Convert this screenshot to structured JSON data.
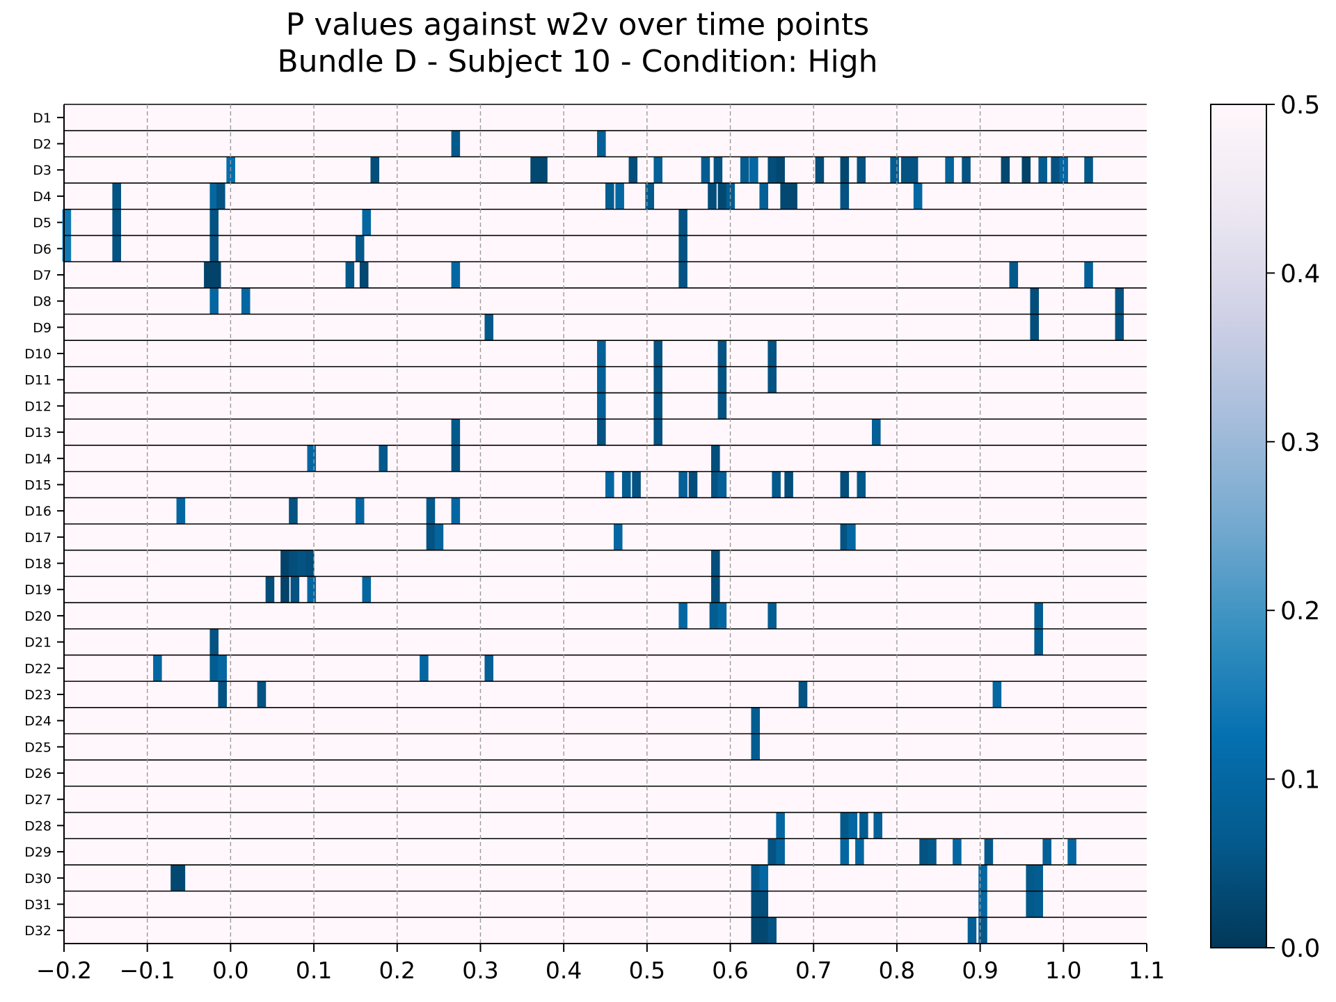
{
  "chart_data": {
    "type": "heatmap",
    "title": "P values against w2v over time points",
    "subtitle": "Bundle D - Subject 10 - Condition: High",
    "xlabel": "",
    "ylabel": "",
    "xlim": [
      -0.2,
      1.1
    ],
    "x_ticks": [
      "−0.2",
      "−0.1",
      "0.0",
      "0.1",
      "0.2",
      "0.3",
      "0.4",
      "0.5",
      "0.6",
      "0.7",
      "0.8",
      "0.9",
      "1.0",
      "1.1"
    ],
    "x_tick_values": [
      -0.2,
      -0.1,
      0.0,
      0.1,
      0.2,
      0.3,
      0.4,
      0.5,
      0.6,
      0.7,
      0.8,
      0.9,
      1.0,
      1.1
    ],
    "vertical_grid": "dashed at each x tick",
    "rows": [
      "D1",
      "D2",
      "D3",
      "D4",
      "D5",
      "D6",
      "D7",
      "D8",
      "D9",
      "D10",
      "D11",
      "D12",
      "D13",
      "D14",
      "D15",
      "D16",
      "D17",
      "D18",
      "D19",
      "D20",
      "D21",
      "D22",
      "D23",
      "D24",
      "D25",
      "D26",
      "D27",
      "D28",
      "D29",
      "D30",
      "D31",
      "D32"
    ],
    "default_p": 0.5,
    "colorbar": {
      "range": [
        0.0,
        0.5
      ],
      "ticks": [
        "0.0",
        "0.1",
        "0.2",
        "0.3",
        "0.4",
        "0.5"
      ],
      "tick_values": [
        0.0,
        0.1,
        0.2,
        0.3,
        0.4,
        0.5
      ],
      "colormap": "PuBu_r",
      "stops": [
        "#023858",
        "#045a8d",
        "#0570b0",
        "#3690c0",
        "#74a9cf",
        "#a6bddb",
        "#d0d1e6",
        "#ece7f2",
        "#fff7fb"
      ]
    },
    "significant_cells": [
      {
        "row": "D2",
        "cells": [
          [
            0.27,
            0.06
          ],
          [
            0.445,
            0.08
          ]
        ]
      },
      {
        "row": "D3",
        "cells": [
          [
            0.0,
            0.12
          ],
          [
            0.173,
            0.04
          ],
          [
            0.365,
            0.03
          ],
          [
            0.375,
            0.03
          ],
          [
            0.483,
            0.04
          ],
          [
            0.513,
            0.08
          ],
          [
            0.57,
            0.07
          ],
          [
            0.585,
            0.05
          ],
          [
            0.617,
            0.07
          ],
          [
            0.628,
            0.1
          ],
          [
            0.65,
            0.04
          ],
          [
            0.66,
            0.03
          ],
          [
            0.707,
            0.04
          ],
          [
            0.737,
            0.03
          ],
          [
            0.757,
            0.05
          ],
          [
            0.797,
            0.07
          ],
          [
            0.81,
            0.05
          ],
          [
            0.82,
            0.05
          ],
          [
            0.863,
            0.09
          ],
          [
            0.883,
            0.05
          ],
          [
            0.93,
            0.03
          ],
          [
            0.955,
            0.02
          ],
          [
            0.975,
            0.07
          ],
          [
            0.99,
            0.05
          ],
          [
            1.0,
            0.1
          ],
          [
            1.03,
            0.06
          ]
        ]
      },
      {
        "row": "D4",
        "cells": [
          [
            -0.137,
            0.05
          ],
          [
            -0.02,
            0.1
          ],
          [
            -0.012,
            0.05
          ],
          [
            0.455,
            0.07
          ],
          [
            0.467,
            0.1
          ],
          [
            0.503,
            0.06
          ],
          [
            0.578,
            0.04
          ],
          [
            0.59,
            0.03
          ],
          [
            0.6,
            0.07
          ],
          [
            0.64,
            0.08
          ],
          [
            0.665,
            0.03
          ],
          [
            0.675,
            0.03
          ],
          [
            0.737,
            0.05
          ],
          [
            0.825,
            0.1
          ]
        ]
      },
      {
        "row": "D5",
        "cells": [
          [
            -0.197,
            0.14
          ],
          [
            -0.137,
            0.05
          ],
          [
            -0.02,
            0.05
          ],
          [
            0.163,
            0.1
          ],
          [
            0.543,
            0.05
          ]
        ]
      },
      {
        "row": "D6",
        "cells": [
          [
            -0.197,
            0.14
          ],
          [
            -0.137,
            0.05
          ],
          [
            -0.02,
            0.05
          ],
          [
            0.155,
            0.06
          ],
          [
            0.543,
            0.05
          ]
        ]
      },
      {
        "row": "D7",
        "cells": [
          [
            -0.027,
            0.02
          ],
          [
            -0.017,
            0.02
          ],
          [
            0.143,
            0.06
          ],
          [
            0.16,
            0.03
          ],
          [
            0.27,
            0.1
          ],
          [
            0.543,
            0.05
          ],
          [
            0.94,
            0.06
          ],
          [
            1.03,
            0.08
          ]
        ]
      },
      {
        "row": "D8",
        "cells": [
          [
            -0.02,
            0.1
          ],
          [
            0.018,
            0.1
          ],
          [
            0.965,
            0.04
          ],
          [
            1.067,
            0.05
          ]
        ]
      },
      {
        "row": "D9",
        "cells": [
          [
            0.31,
            0.06
          ],
          [
            0.965,
            0.04
          ],
          [
            1.067,
            0.05
          ]
        ]
      },
      {
        "row": "D10",
        "cells": [
          [
            0.445,
            0.08
          ],
          [
            0.513,
            0.05
          ],
          [
            0.59,
            0.05
          ],
          [
            0.65,
            0.05
          ]
        ]
      },
      {
        "row": "D11",
        "cells": [
          [
            0.445,
            0.08
          ],
          [
            0.513,
            0.05
          ],
          [
            0.59,
            0.05
          ],
          [
            0.65,
            0.05
          ]
        ]
      },
      {
        "row": "D12",
        "cells": [
          [
            0.445,
            0.08
          ],
          [
            0.513,
            0.05
          ],
          [
            0.59,
            0.05
          ]
        ]
      },
      {
        "row": "D13",
        "cells": [
          [
            0.27,
            0.06
          ],
          [
            0.445,
            0.05
          ],
          [
            0.513,
            0.05
          ],
          [
            0.775,
            0.08
          ]
        ]
      },
      {
        "row": "D14",
        "cells": [
          [
            0.097,
            0.1
          ],
          [
            0.183,
            0.06
          ],
          [
            0.27,
            0.05
          ],
          [
            0.582,
            0.04
          ]
        ]
      },
      {
        "row": "D15",
        "cells": [
          [
            0.455,
            0.1
          ],
          [
            0.475,
            0.07
          ],
          [
            0.487,
            0.05
          ],
          [
            0.543,
            0.08
          ],
          [
            0.555,
            0.04
          ],
          [
            0.582,
            0.05
          ],
          [
            0.59,
            0.08
          ],
          [
            0.655,
            0.06
          ],
          [
            0.67,
            0.04
          ],
          [
            0.737,
            0.04
          ],
          [
            0.757,
            0.06
          ]
        ]
      },
      {
        "row": "D16",
        "cells": [
          [
            -0.06,
            0.1
          ],
          [
            0.075,
            0.05
          ],
          [
            0.155,
            0.1
          ],
          [
            0.24,
            0.06
          ],
          [
            0.27,
            0.1
          ]
        ]
      },
      {
        "row": "D17",
        "cells": [
          [
            0.24,
            0.05
          ],
          [
            0.25,
            0.09
          ],
          [
            0.465,
            0.1
          ],
          [
            0.737,
            0.05
          ],
          [
            0.745,
            0.1
          ]
        ]
      },
      {
        "row": "D18",
        "cells": [
          [
            0.065,
            0.02
          ],
          [
            0.075,
            0.04
          ],
          [
            0.085,
            0.05
          ],
          [
            0.095,
            0.04
          ],
          [
            0.582,
            0.04
          ]
        ]
      },
      {
        "row": "D19",
        "cells": [
          [
            0.047,
            0.04
          ],
          [
            0.065,
            0.02
          ],
          [
            0.077,
            0.05
          ],
          [
            0.097,
            0.1
          ],
          [
            0.163,
            0.1
          ],
          [
            0.582,
            0.04
          ]
        ]
      },
      {
        "row": "D20",
        "cells": [
          [
            0.543,
            0.1
          ],
          [
            0.58,
            0.07
          ],
          [
            0.59,
            0.1
          ],
          [
            0.65,
            0.07
          ],
          [
            0.97,
            0.07
          ]
        ]
      },
      {
        "row": "D21",
        "cells": [
          [
            -0.02,
            0.05
          ],
          [
            0.97,
            0.07
          ]
        ]
      },
      {
        "row": "D22",
        "cells": [
          [
            -0.088,
            0.1
          ],
          [
            -0.02,
            0.07
          ],
          [
            -0.01,
            0.1
          ],
          [
            0.232,
            0.1
          ],
          [
            0.31,
            0.08
          ]
        ]
      },
      {
        "row": "D23",
        "cells": [
          [
            -0.01,
            0.05
          ],
          [
            0.037,
            0.05
          ],
          [
            0.687,
            0.05
          ],
          [
            0.92,
            0.1
          ]
        ]
      },
      {
        "row": "D24",
        "cells": [
          [
            0.63,
            0.07
          ]
        ]
      },
      {
        "row": "D25",
        "cells": [
          [
            0.63,
            0.07
          ]
        ]
      },
      {
        "row": "D28",
        "cells": [
          [
            0.66,
            0.1
          ],
          [
            0.737,
            0.06
          ],
          [
            0.747,
            0.1
          ],
          [
            0.76,
            0.07
          ],
          [
            0.777,
            0.08
          ]
        ]
      },
      {
        "row": "D29",
        "cells": [
          [
            0.65,
            0.05
          ],
          [
            0.66,
            0.09
          ],
          [
            0.737,
            0.1
          ],
          [
            0.755,
            0.1
          ],
          [
            0.832,
            0.05
          ],
          [
            0.842,
            0.06
          ],
          [
            0.872,
            0.1
          ],
          [
            0.91,
            0.06
          ],
          [
            0.98,
            0.08
          ],
          [
            1.01,
            0.1
          ]
        ]
      },
      {
        "row": "D30",
        "cells": [
          [
            -0.067,
            0.03
          ],
          [
            -0.06,
            0.03
          ],
          [
            0.63,
            0.06
          ],
          [
            0.64,
            0.1
          ],
          [
            0.903,
            0.1
          ],
          [
            0.96,
            0.06
          ],
          [
            0.97,
            0.07
          ]
        ]
      },
      {
        "row": "D31",
        "cells": [
          [
            0.63,
            0.04
          ],
          [
            0.64,
            0.04
          ],
          [
            0.903,
            0.1
          ],
          [
            0.96,
            0.06
          ],
          [
            0.97,
            0.07
          ]
        ]
      },
      {
        "row": "D32",
        "cells": [
          [
            0.63,
            0.03
          ],
          [
            0.64,
            0.03
          ],
          [
            0.65,
            0.05
          ],
          [
            0.89,
            0.08
          ],
          [
            0.903,
            0.06
          ]
        ]
      }
    ]
  }
}
